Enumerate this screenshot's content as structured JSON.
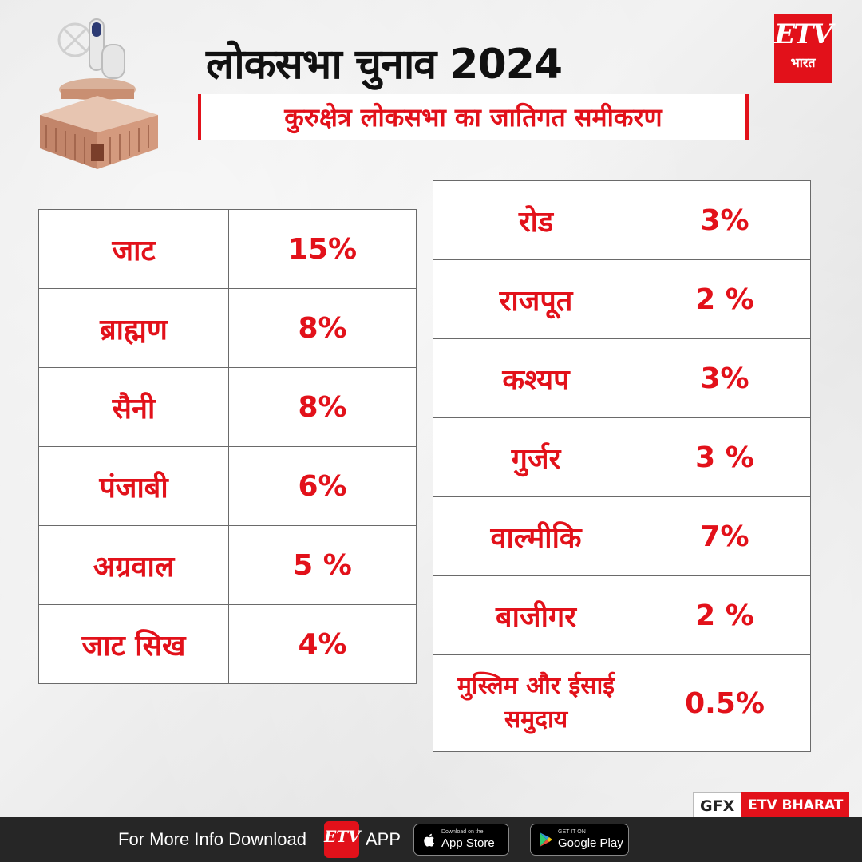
{
  "header": {
    "title": "लोकसभा चुनाव 2024",
    "subtitle": "कुरुक्षेत्र लोकसभा का जातिगत समीकरण"
  },
  "brand": {
    "logo_mark": "ETV",
    "logo_sub": "भारत",
    "accent_color": "#e2111a"
  },
  "left_table": [
    {
      "caste": "जाट",
      "percent": "15%"
    },
    {
      "caste": "ब्राह्मण",
      "percent": "8%"
    },
    {
      "caste": "सैनी",
      "percent": "8%"
    },
    {
      "caste": "पंजाबी",
      "percent": "6%"
    },
    {
      "caste": "अग्रवाल",
      "percent": "5 %"
    },
    {
      "caste": "जाट सिख",
      "percent": "4%"
    }
  ],
  "right_table": [
    {
      "caste": "रोड",
      "percent": "3%"
    },
    {
      "caste": "राजपूत",
      "percent": "2 %"
    },
    {
      "caste": "कश्यप",
      "percent": "3%"
    },
    {
      "caste": "गुर्जर",
      "percent": "3 %"
    },
    {
      "caste": "वाल्मीकि",
      "percent": "7%"
    },
    {
      "caste": "बाजीगर",
      "percent": "2 %"
    },
    {
      "caste": "मुस्लिम और ईसाई समुदाय",
      "percent": "0.5%"
    }
  ],
  "credit": {
    "gfx": "GFX",
    "source": "ETV BHARAT"
  },
  "footer": {
    "text": "For More Info Download",
    "app_logo": "ETV",
    "app_label": "APP",
    "appstore_small": "Download on the",
    "appstore_big": "App Store",
    "playstore_small": "GET IT ON",
    "playstore_big": "Google Play"
  }
}
